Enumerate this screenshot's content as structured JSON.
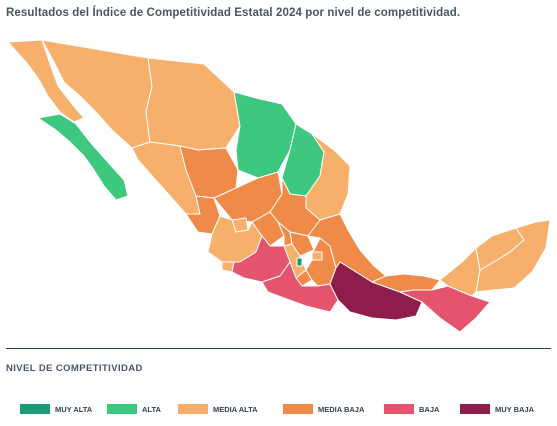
{
  "title": "Resultados del Índice de Competitividad Estatal 2024 por nivel de competitividad.",
  "legend": {
    "title": "NIVEL DE COMPETITIVIDAD",
    "items": [
      {
        "label": "MUY ALTA",
        "color": "#1f9a77"
      },
      {
        "label": "ALTA",
        "color": "#3ec77f"
      },
      {
        "label": "MEDIA ALTA",
        "color": "#f6b06c"
      },
      {
        "label": "MEDIA BAJA",
        "color": "#f08a48"
      },
      {
        "label": "BAJA",
        "color": "#e4546f"
      },
      {
        "label": "MUY BAJA",
        "color": "#8e1d4c"
      }
    ]
  }
}
